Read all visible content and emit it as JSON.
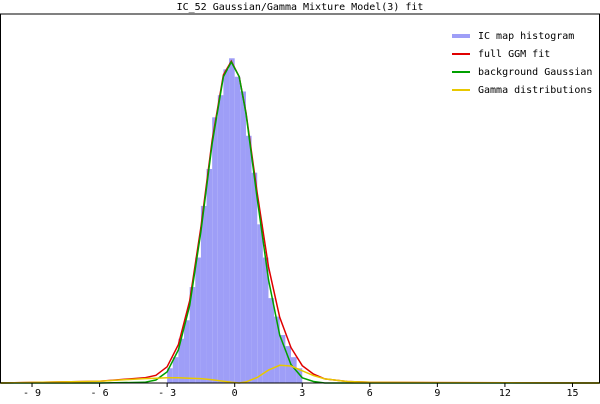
{
  "chart_data": {
    "type": "histogram",
    "title": "IC_52 Gaussian/Gamma Mixture Model(3) fit",
    "histogram": {
      "name": "IC map histogram",
      "color": "#9e9ef7",
      "bins": [
        -3,
        -2.75,
        -2.5,
        -2.25,
        -2,
        -1.75,
        -1.5,
        -1.25,
        -1,
        -0.75,
        -0.5,
        -0.25,
        0,
        0.25,
        0.5,
        0.75,
        1,
        1.25,
        1.5,
        1.75,
        2,
        2.25,
        2.5,
        2.75,
        3
      ],
      "counts": [
        0.04,
        0.07,
        0.12,
        0.17,
        0.26,
        0.34,
        0.48,
        0.58,
        0.72,
        0.78,
        0.85,
        0.88,
        0.83,
        0.79,
        0.67,
        0.57,
        0.43,
        0.34,
        0.23,
        0.18,
        0.13,
        0.1,
        0.07,
        0.04
      ]
    },
    "x": [
      -10.4,
      -6,
      -4,
      -3.5,
      -3,
      -2.5,
      -2,
      -1.5,
      -1,
      -0.5,
      -0.15,
      0.2,
      0.5,
      1,
      1.5,
      2,
      2.5,
      3,
      3.5,
      4,
      5,
      6,
      9,
      16.2
    ],
    "series": [
      {
        "name": "full GGM fit",
        "color": "#e00000",
        "values": [
          0,
          0.005,
          0.014,
          0.021,
          0.044,
          0.104,
          0.223,
          0.422,
          0.659,
          0.835,
          0.872,
          0.83,
          0.733,
          0.515,
          0.315,
          0.178,
          0.096,
          0.047,
          0.024,
          0.011,
          0.004,
          0.002,
          0.001,
          0
        ]
      },
      {
        "name": "background Gaussian",
        "color": "#00a000",
        "values": [
          0,
          0,
          0.002,
          0.008,
          0.03,
          0.09,
          0.21,
          0.41,
          0.65,
          0.83,
          0.87,
          0.83,
          0.73,
          0.5,
          0.28,
          0.13,
          0.05,
          0.014,
          0.004,
          0,
          0,
          0,
          0,
          0
        ]
      },
      {
        "name": "Gamma distributions",
        "color": "#e8c800",
        "values": [
          0,
          0.005,
          0.012,
          0.013,
          0.014,
          0.014,
          0.013,
          0.012,
          0.009,
          0.005,
          0.002,
          0,
          0.003,
          0.015,
          0.035,
          0.048,
          0.046,
          0.033,
          0.02,
          0.011,
          0.004,
          0.002,
          0.001,
          0
        ]
      }
    ],
    "xlim": [
      -10.4,
      16.2
    ],
    "ylim": [
      0,
      1
    ],
    "xticks": [
      {
        "value": -9,
        "label": "- 9"
      },
      {
        "value": -6,
        "label": "- 6"
      },
      {
        "value": -3,
        "label": "- 3"
      },
      0,
      3,
      6,
      9,
      12,
      15
    ],
    "legend": "upper right"
  }
}
